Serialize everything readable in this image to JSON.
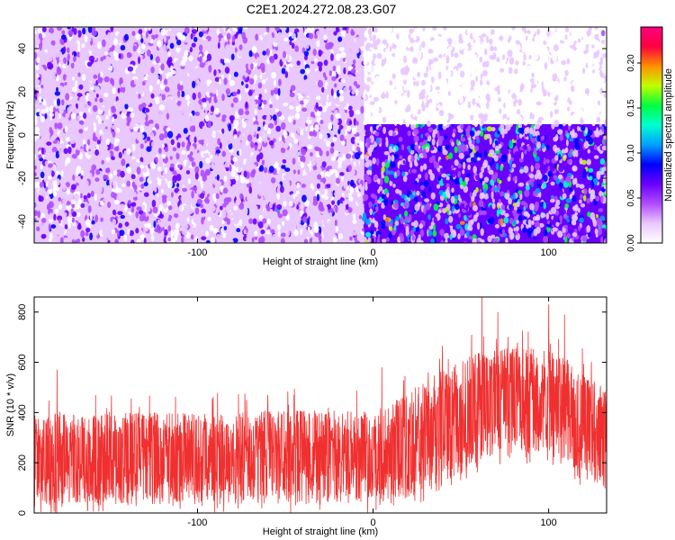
{
  "chart_data": [
    {
      "type": "heatmap",
      "title": "C2E1.2024.272.08.23.G07",
      "xlabel": "Height of straight line (km)",
      "ylabel": "Frequency (Hz)",
      "xlim": [
        -193,
        133
      ],
      "ylim": [
        -50,
        50
      ],
      "x_ticks": [
        -100,
        0,
        100
      ],
      "y_ticks": [
        -40,
        -20,
        0,
        20,
        40
      ],
      "colorbar": {
        "label": "Normalized spectral amplitude",
        "range": [
          0,
          0.24
        ],
        "ticks": [
          "0.00",
          "0.05",
          "0.10",
          "0.15",
          "0.20"
        ],
        "colors": [
          "#ffffff",
          "#e8c8ff",
          "#b04cff",
          "#6a00ff",
          "#0000ff",
          "#00a0ff",
          "#00ffd0",
          "#00ff40",
          "#c0ff00",
          "#ff9000",
          "#ff0040",
          "#ff0080"
        ]
      },
      "regions": [
        {
          "x": [
            -193,
            -5
          ],
          "y": [
            -50,
            50
          ],
          "level": "low",
          "mean_amplitude": 0.03
        },
        {
          "x": [
            -5,
            133
          ],
          "y": [
            -50,
            5
          ],
          "level": "moderate",
          "mean_amplitude": 0.06
        },
        {
          "x": [
            -5,
            133
          ],
          "y": [
            5,
            50
          ],
          "level": "very low",
          "mean_amplitude": 0.01
        }
      ]
    },
    {
      "type": "line",
      "xlabel": "Height of straight line (km)",
      "ylabel": "SNR (10 * v/v)",
      "xlim": [
        -193,
        133
      ],
      "ylim": [
        0,
        860
      ],
      "x_ticks": [
        -100,
        0,
        100
      ],
      "y_ticks": [
        0,
        200,
        400,
        600,
        800
      ],
      "series_color": "#f03030",
      "envelope": {
        "x": [
          -193,
          -150,
          -100,
          -50,
          0,
          20,
          40,
          60,
          80,
          100,
          115,
          133
        ],
        "upper": [
          390,
          400,
          400,
          410,
          410,
          470,
          580,
          640,
          660,
          650,
          600,
          480
        ],
        "mean": [
          200,
          205,
          210,
          215,
          220,
          270,
          350,
          420,
          440,
          430,
          390,
          330
        ],
        "lower": [
          30,
          30,
          35,
          35,
          40,
          60,
          120,
          200,
          240,
          230,
          160,
          100
        ]
      },
      "peaks": [
        {
          "x": -180,
          "y": 570
        },
        {
          "x": -73,
          "y": 475
        },
        {
          "x": -45,
          "y": 470
        },
        {
          "x": 5,
          "y": 580
        },
        {
          "x": 62,
          "y": 858
        },
        {
          "x": 71,
          "y": 800
        },
        {
          "x": 100,
          "y": 830
        },
        {
          "x": 109,
          "y": 790
        }
      ]
    }
  ]
}
